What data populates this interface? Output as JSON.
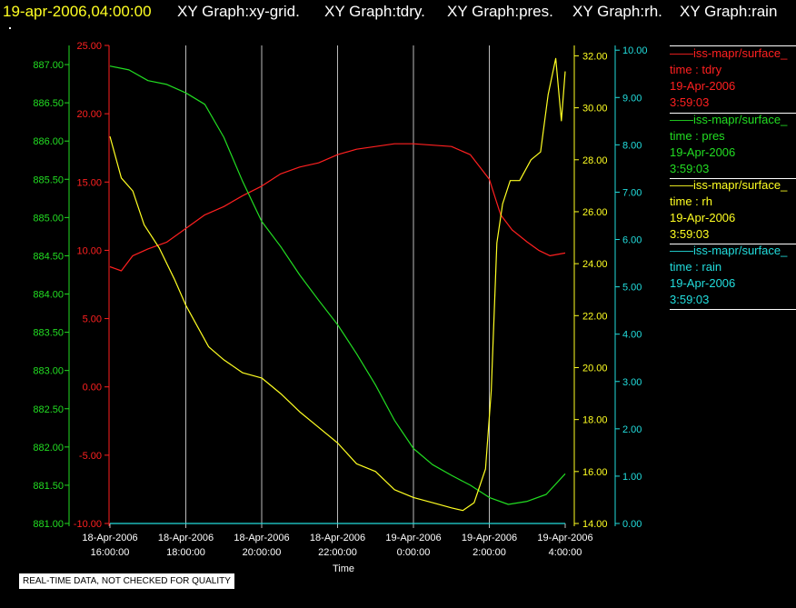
{
  "header": {
    "timestamp": "19-apr-2006,04:00:00",
    "graphs": [
      "XY Graph:xy-grid.",
      "XY Graph:tdry.",
      "XY Graph:pres.",
      "XY Graph:rh.",
      "XY Graph:rain"
    ]
  },
  "legend": [
    {
      "name": "iss-mapr/surface_",
      "var": "time : tdry",
      "date": "19-Apr-2006",
      "time": "3:59:03",
      "color": "#ff2020"
    },
    {
      "name": "iss-mapr/surface_",
      "var": "time : pres",
      "date": "19-Apr-2006",
      "time": "3:59:03",
      "color": "#22dd22"
    },
    {
      "name": "iss-mapr/surface_",
      "var": "time : rh",
      "date": "19-Apr-2006",
      "time": "3:59:03",
      "color": "#ffff22"
    },
    {
      "name": "iss-mapr/surface_",
      "var": "time : rain",
      "date": "19-Apr-2006",
      "time": "3:59:03",
      "color": "#22dddd"
    }
  ],
  "notice": "REAL-TIME DATA, NOT CHECKED FOR QUALITY",
  "chart_data": {
    "type": "line",
    "xlabel": "Time",
    "x_ticks": [
      [
        "18-Apr-2006",
        "16:00:00"
      ],
      [
        "18-Apr-2006",
        "18:00:00"
      ],
      [
        "18-Apr-2006",
        "20:00:00"
      ],
      [
        "18-Apr-2006",
        "22:00:00"
      ],
      [
        "19-Apr-2006",
        "0:00:00"
      ],
      [
        "19-Apr-2006",
        "2:00:00"
      ],
      [
        "19-Apr-2006",
        "4:00:00"
      ]
    ],
    "x_range_hours": [
      0,
      12
    ],
    "grid": true,
    "axes": {
      "pres": {
        "color": "#22dd22",
        "ylim": [
          881.0,
          887.25
        ],
        "ticks": [
          "881.00",
          "881.50",
          "882.00",
          "882.50",
          "883.00",
          "883.50",
          "884.00",
          "884.50",
          "885.00",
          "885.50",
          "886.00",
          "886.50",
          "887.00"
        ]
      },
      "tdry": {
        "color": "#ff2020",
        "ylim": [
          -10,
          25
        ],
        "ticks": [
          "-10.00",
          "-5.00",
          "0.00",
          "5.00",
          "10.00",
          "15.00",
          "20.00",
          "25.00"
        ]
      },
      "rh": {
        "color": "#ffff22",
        "ylim": [
          14,
          32.4
        ],
        "ticks": [
          "14.00",
          "16.00",
          "18.00",
          "20.00",
          "22.00",
          "24.00",
          "26.00",
          "28.00",
          "30.00",
          "32.00"
        ]
      },
      "rain": {
        "color": "#22dddd",
        "ylim": [
          0,
          10.1
        ],
        "ticks": [
          "0.00",
          "1.00",
          "2.00",
          "3.00",
          "4.00",
          "5.00",
          "6.00",
          "7.00",
          "8.00",
          "9.00",
          "10.00"
        ]
      }
    },
    "series": [
      {
        "id": "tdry",
        "axis": "tdry",
        "color": "#ff2020",
        "x": [
          0,
          0.3,
          0.6,
          1,
          1.5,
          2,
          2.5,
          3,
          3.5,
          4,
          4.5,
          5,
          5.5,
          6,
          6.5,
          7,
          7.5,
          8,
          8.5,
          9,
          9.5,
          10,
          10.3,
          10.6,
          11,
          11.3,
          11.6,
          12
        ],
        "y": [
          8.8,
          8.5,
          9.6,
          10.1,
          10.6,
          11.6,
          12.6,
          13.2,
          14.0,
          14.7,
          15.6,
          16.1,
          16.4,
          17.0,
          17.4,
          17.6,
          17.8,
          17.8,
          17.7,
          17.6,
          17.0,
          15.2,
          12.6,
          11.5,
          10.6,
          10.0,
          9.6,
          9.8
        ]
      },
      {
        "id": "pres",
        "axis": "pres",
        "color": "#22dd22",
        "x": [
          0,
          0.5,
          1,
          1.5,
          2,
          2.5,
          3,
          3.5,
          4,
          4.5,
          5,
          5.5,
          6,
          6.5,
          7,
          7.5,
          8,
          8.5,
          9,
          9.5,
          10,
          10.5,
          11,
          11.5,
          12
        ],
        "y": [
          886.98,
          886.93,
          886.79,
          886.74,
          886.63,
          886.48,
          886.05,
          885.47,
          884.95,
          884.62,
          884.25,
          883.92,
          883.6,
          883.22,
          882.81,
          882.35,
          881.98,
          881.77,
          881.63,
          881.5,
          881.34,
          881.25,
          881.29,
          881.38,
          881.65
        ]
      },
      {
        "id": "rh",
        "axis": "rh",
        "color": "#ffff22",
        "x": [
          0,
          0.3,
          0.6,
          0.9,
          1.3,
          1.7,
          2,
          2.3,
          2.6,
          3,
          3.5,
          4,
          4.5,
          5,
          5.5,
          6,
          6.5,
          7,
          7.5,
          8,
          8.5,
          9,
          9.3,
          9.6,
          9.9,
          10.05,
          10.2,
          10.35,
          10.55,
          10.8,
          11.1,
          11.35,
          11.55,
          11.75,
          11.9,
          12
        ],
        "y": [
          28.9,
          27.3,
          26.8,
          25.5,
          24.6,
          23.4,
          22.4,
          21.6,
          20.8,
          20.3,
          19.8,
          19.6,
          19.0,
          18.3,
          17.7,
          17.1,
          16.3,
          16.0,
          15.3,
          15.0,
          14.8,
          14.6,
          14.5,
          14.8,
          16.1,
          19.1,
          24.8,
          26.3,
          27.2,
          27.2,
          28.0,
          28.3,
          30.5,
          31.9,
          29.5,
          31.4
        ]
      },
      {
        "id": "rain",
        "axis": "rain",
        "color": "#22dddd",
        "x": [
          0,
          12
        ],
        "y": [
          0,
          0
        ]
      }
    ]
  }
}
